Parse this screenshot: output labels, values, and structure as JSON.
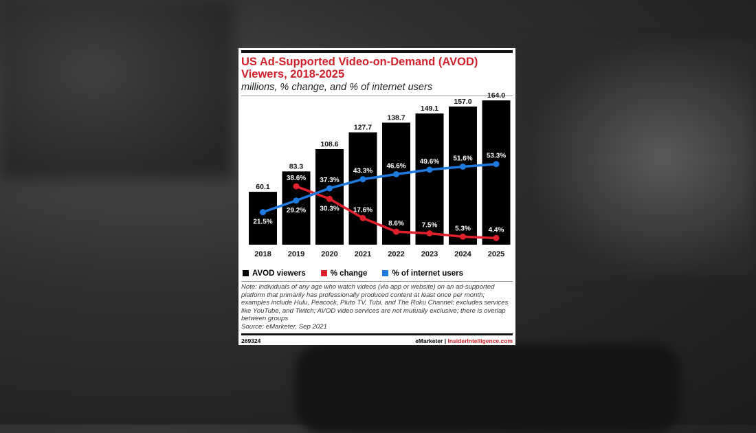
{
  "chart_data": {
    "type": "bar",
    "title": "US Ad-Supported Video-on-Demand (AVOD) Viewers, 2018-2025",
    "subtitle": "millions, % change, and % of internet users",
    "categories": [
      "2018",
      "2019",
      "2020",
      "2021",
      "2022",
      "2023",
      "2024",
      "2025"
    ],
    "series": [
      {
        "name": "AVOD viewers",
        "type": "bar",
        "color": "#000000",
        "values": [
          60.1,
          83.3,
          108.6,
          127.7,
          138.7,
          149.1,
          157.0,
          164.0
        ],
        "labels": [
          "60.1",
          "83.3",
          "108.6",
          "127.7",
          "138.7",
          "149.1",
          "157.0",
          "164.0"
        ]
      },
      {
        "name": "% change",
        "type": "line",
        "color": "#e0202a",
        "values": [
          null,
          38.6,
          30.3,
          17.6,
          8.6,
          7.5,
          5.3,
          4.4
        ],
        "labels": [
          "",
          "38.6%",
          "30.3%",
          "17.6%",
          "8.6%",
          "7.5%",
          "5.3%",
          "4.4%"
        ]
      },
      {
        "name": "% of internet users",
        "type": "line",
        "color": "#1f7be0",
        "values": [
          21.5,
          29.2,
          37.3,
          43.3,
          46.6,
          49.6,
          51.6,
          53.3
        ],
        "labels": [
          "21.5%",
          "29.2%",
          "37.3%",
          "43.3%",
          "46.6%",
          "49.6%",
          "51.6%",
          "53.3%"
        ]
      }
    ],
    "legend": "bottom",
    "grid": false
  },
  "note": "Note: individuals of any age who watch videos (via app or website) on an ad-supported platform that primarily has professionally produced content at least once per month; examples include Hulu, Peacock, Pluto TV, Tubi, and The Roku Channel; excludes services like YouTube, and Twitch; AVOD video services are not mutually exclusive; there is overlap between groups",
  "source": "Source: eMarketer, Sep 2021",
  "footer": {
    "id": "269324",
    "brand1": "eMarketer",
    "sep": "|",
    "brand2": "InsiderIntelligence.com"
  }
}
